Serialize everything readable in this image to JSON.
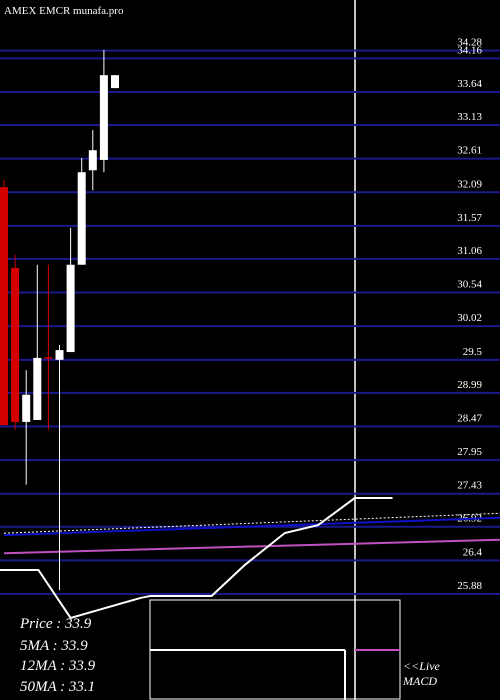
{
  "chart_data": {
    "type": "candlestick",
    "title": "AMEX  EMCR munafa.pro",
    "ylim": [
      25.88,
      34.28
    ],
    "yticks": [
      34.28,
      34.16,
      33.64,
      33.13,
      32.61,
      32.09,
      31.57,
      31.06,
      30.54,
      30.02,
      29.5,
      28.99,
      28.47,
      27.95,
      27.43,
      26.92,
      26.4,
      25.88
    ],
    "grid": true,
    "grid_color": "#1a1a8c",
    "up_color": "#ffffff",
    "down_color": "#d40000",
    "open": [
      32.17,
      30.92,
      28.54,
      28.57,
      29.54,
      29.5,
      29.62,
      30.97,
      32.43,
      32.59,
      33.7
    ],
    "high": [
      32.28,
      31.12,
      29.34,
      30.97,
      30.97,
      29.73,
      31.54,
      32.62,
      33.05,
      34.29,
      33.9
    ],
    "low": [
      28.49,
      28.42,
      27.57,
      28.57,
      28.42,
      25.94,
      29.62,
      30.97,
      32.12,
      32.4,
      33.7
    ],
    "close": [
      28.49,
      28.54,
      28.96,
      29.53,
      29.52,
      29.65,
      30.97,
      32.4,
      32.74,
      33.9,
      33.9
    ],
    "series": [
      {
        "color": "#ffffff",
        "x": [
          0,
          45
        ],
        "values": [
          26.82,
          27.13
        ],
        "dashed": true
      },
      {
        "color": "#1010c8",
        "x": [
          0,
          45
        ],
        "values": [
          26.79,
          27.06
        ]
      },
      {
        "color": "#c050c0",
        "x": [
          0,
          45
        ],
        "values": [
          26.51,
          26.72
        ]
      }
    ],
    "macd": {
      "color": "#ffffff",
      "ylim": [
        0,
        100
      ],
      "x": [
        -0.4,
        3.1,
        6.0,
        12.3,
        13.2,
        18.7,
        21.7,
        25.3,
        28.3,
        31.6,
        35.0
      ],
      "values": [
        59.1,
        59.1,
        37.3,
        46.4,
        47.3,
        47.3,
        61.4,
        75.9,
        79.5,
        91.8,
        91.8
      ]
    },
    "info": [
      "Price  : 33.9",
      "5MA : 33.9",
      "12MA : 33.9",
      "50MA : 33.1"
    ],
    "annotations": [
      "<<Live",
      "MACD"
    ]
  }
}
